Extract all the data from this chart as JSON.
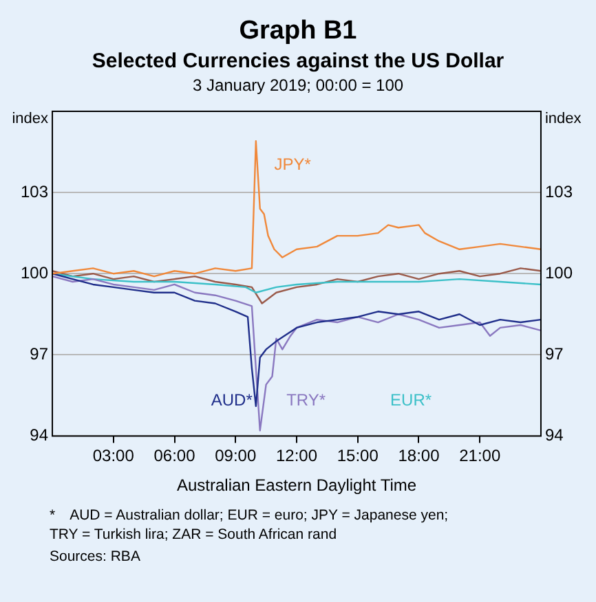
{
  "chart_data": {
    "type": "line",
    "title": "Graph B1",
    "subtitle": "Selected Currencies against the US Dollar\n3 January 2019; 00:00 = 100",
    "xlabel": "Australian Eastern Daylight Time",
    "ylabel": "index",
    "y2label": "index",
    "annotations": [
      "* AUD = Australian dollar; EUR = euro; JPY  = Japanese yen;\nTRY = Turkish lira; ZAR = South African rand",
      "Sources: RBA"
    ],
    "xlim": [
      0,
      24
    ],
    "xticks": [
      {
        "value": 3,
        "label": "03:00"
      },
      {
        "value": 6,
        "label": "06:00"
      },
      {
        "value": 9,
        "label": "09:00"
      },
      {
        "value": 12,
        "label": "12:00"
      },
      {
        "value": 15,
        "label": "15:00"
      },
      {
        "value": 18,
        "label": "18:00"
      },
      {
        "value": 21,
        "label": "21:00"
      }
    ],
    "ylim": [
      94,
      106
    ],
    "yticks": [
      94,
      97,
      100,
      103
    ],
    "y2lim": [
      94,
      106
    ],
    "y2ticks": [
      94,
      97,
      100,
      103
    ],
    "grid": "y",
    "legend": false,
    "marker": "none",
    "line_style": "solid",
    "series": [
      {
        "name": "JPY*",
        "color": "#f0883a",
        "x": [
          0,
          1,
          2,
          3,
          4,
          5,
          6,
          7,
          8,
          9,
          9.8,
          10,
          10.2,
          10.4,
          10.6,
          10.9,
          11.3,
          12,
          13,
          14,
          15,
          16,
          16.5,
          17,
          18,
          18.3,
          19,
          20,
          21,
          22,
          23,
          24
        ],
        "values": [
          100,
          100.1,
          100.2,
          100,
          100.1,
          99.9,
          100.1,
          100,
          100.2,
          100.1,
          100.2,
          104.9,
          102.4,
          102.2,
          101.4,
          100.9,
          100.6,
          100.9,
          101,
          101.4,
          101.4,
          101.5,
          101.8,
          101.7,
          101.8,
          101.5,
          101.2,
          100.9,
          101,
          101.1,
          101,
          100.9
        ]
      },
      {
        "name": "AUD*",
        "color": "#1f2e8a",
        "x": [
          0,
          1,
          2,
          3,
          4,
          5,
          6,
          7,
          8,
          9,
          9.6,
          9.8,
          10,
          10.2,
          10.5,
          11,
          12,
          13,
          14,
          15,
          16,
          17,
          18,
          19,
          20,
          21,
          22,
          23,
          24
        ],
        "values": [
          100,
          99.8,
          99.6,
          99.5,
          99.4,
          99.3,
          99.3,
          99,
          98.9,
          98.6,
          98.4,
          96.5,
          95.1,
          96.9,
          97.2,
          97.5,
          98,
          98.2,
          98.3,
          98.4,
          98.6,
          98.5,
          98.6,
          98.3,
          98.5,
          98.1,
          98.3,
          98.2,
          98.3
        ]
      },
      {
        "name": "TRY*",
        "color": "#8a78c0",
        "x": [
          0,
          1,
          2,
          3,
          4,
          5,
          6,
          7,
          8,
          9,
          9.8,
          10,
          10.2,
          10.5,
          10.8,
          11,
          11.3,
          11.7,
          12,
          13,
          14,
          15,
          16,
          17,
          18,
          19,
          20,
          21,
          21.5,
          22,
          23,
          24
        ],
        "values": [
          99.9,
          99.7,
          99.8,
          99.6,
          99.5,
          99.4,
          99.6,
          99.3,
          99.2,
          99,
          98.8,
          96.5,
          94.2,
          95.9,
          96.2,
          97.6,
          97.2,
          97.7,
          98,
          98.3,
          98.2,
          98.4,
          98.2,
          98.5,
          98.3,
          98,
          98.1,
          98.2,
          97.7,
          98,
          98.1,
          97.9
        ]
      },
      {
        "name": "EUR*",
        "color": "#3cc0c8",
        "x": [
          0,
          2,
          4,
          6,
          8,
          9.5,
          10,
          11,
          12,
          14,
          16,
          18,
          20,
          22,
          24
        ],
        "values": [
          100,
          99.8,
          99.7,
          99.7,
          99.6,
          99.5,
          99.3,
          99.5,
          99.6,
          99.7,
          99.7,
          99.7,
          99.8,
          99.7,
          99.6
        ]
      },
      {
        "color": "#9a5a4a",
        "x": [
          0,
          1,
          2,
          3,
          4,
          5,
          6,
          7,
          8,
          9,
          9.8,
          10.3,
          11,
          12,
          13,
          14,
          15,
          16,
          17,
          18,
          19,
          20,
          21,
          22,
          23,
          24
        ],
        "values": [
          100.1,
          99.9,
          100,
          99.8,
          99.9,
          99.7,
          99.8,
          99.9,
          99.7,
          99.6,
          99.5,
          98.9,
          99.3,
          99.5,
          99.6,
          99.8,
          99.7,
          99.9,
          100,
          99.8,
          100,
          100.1,
          99.9,
          100,
          100.2,
          100.1
        ]
      }
    ]
  }
}
